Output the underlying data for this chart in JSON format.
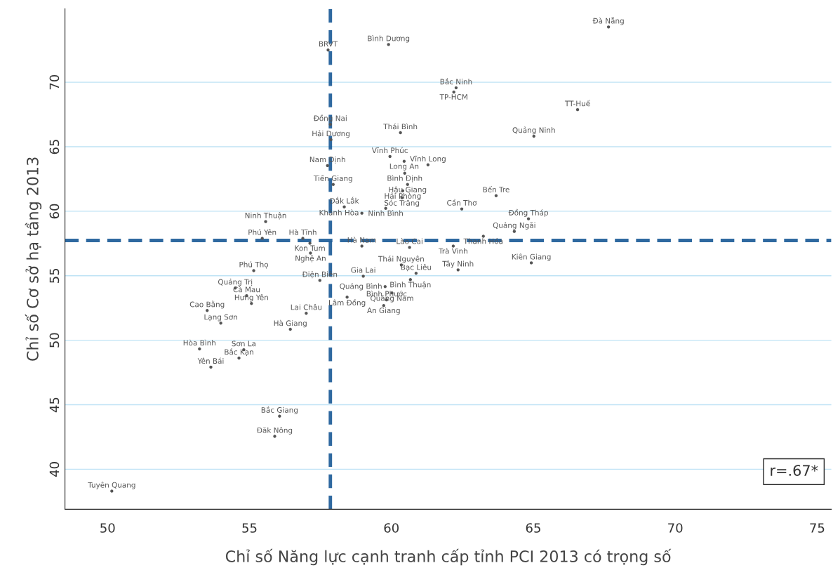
{
  "chart_data": {
    "type": "scatter",
    "xlabel": "Chỉ số Năng lực cạnh tranh cấp tỉnh PCI 2013 có trọng số",
    "ylabel": "Chỉ số Cơ sở hạ tầng 2013",
    "xlim": [
      48.5,
      75.5
    ],
    "ylim": [
      36.9,
      75.7
    ],
    "xticks": [
      50,
      55,
      60,
      65,
      70,
      75
    ],
    "yticks": [
      40,
      45,
      50,
      55,
      60,
      65,
      70
    ],
    "grid": "y",
    "marker": "circle",
    "color": "#555555",
    "x": [
      67.65,
      57.77,
      59.9,
      62.28,
      62.2,
      66.56,
      57.85,
      60.32,
      65.02,
      57.87,
      59.95,
      60.45,
      61.29,
      57.75,
      60.47,
      57.95,
      60.57,
      60.4,
      60.37,
      63.69,
      58.34,
      59.8,
      62.48,
      58.96,
      55.57,
      64.83,
      64.33,
      63.24,
      55.45,
      56.88,
      57.13,
      57.15,
      58.96,
      60.64,
      62.18,
      64.93,
      60.35,
      62.35,
      55.15,
      60.87,
      59.01,
      60.67,
      57.48,
      59.78,
      54.5,
      60.02,
      54.9,
      58.44,
      59.83,
      55.07,
      59.73,
      53.51,
      57.0,
      53.99,
      56.44,
      53.24,
      54.8,
      54.63,
      53.64,
      56.06,
      55.89,
      50.15
    ],
    "values": [
      74.29,
      72.5,
      72.93,
      69.57,
      69.24,
      67.88,
      66.74,
      66.09,
      65.82,
      65.55,
      64.25,
      63.87,
      63.6,
      63.54,
      62.95,
      62.08,
      62.08,
      61.59,
      61.05,
      61.21,
      60.34,
      60.23,
      60.18,
      59.85,
      59.2,
      59.42,
      58.44,
      58.06,
      57.9,
      57.9,
      57.52,
      56.76,
      57.3,
      57.2,
      57.3,
      56.0,
      55.84,
      55.46,
      55.4,
      55.19,
      54.97,
      54.7,
      54.64,
      54.16,
      54.05,
      53.67,
      53.46,
      53.34,
      53.13,
      52.85,
      52.69,
      52.31,
      52.09,
      51.33,
      50.85,
      49.33,
      49.27,
      48.62,
      47.92,
      44.12,
      42.55,
      38.31
    ],
    "value_labels": [
      "Đà Nẵng",
      "BRVT",
      "Bình Dương",
      "Bắc Ninh",
      "TP-HCM",
      "TT-Huế",
      "Đồng Nai",
      "Thái Bình",
      "Quảng Ninh",
      "Hải Dương",
      "Vĩnh Phúc",
      "Long An",
      "Vĩnh Long",
      "Nam Định",
      "Bình Định",
      "Tiền Giang",
      "Hậu Giang",
      "Hải Phòng",
      "Sóc Trăng",
      "Bến Tre",
      "Đắk Lắk",
      "Ninh Bình",
      "Cần Thơ",
      "Khánh Hòa",
      "Ninh Thuận",
      "Đồng Tháp",
      "Quảng Ngãi",
      "Thanh Hóa",
      "Phú Yên",
      "Hà Tĩnh",
      "Kon Tum",
      "Nghệ An",
      "Hà Nam",
      "Lào Cai",
      "Trà Vinh",
      "Kiên Giang",
      "Thái Nguyên",
      "Tây Ninh",
      "Phú Thọ",
      "Bạc Liêu",
      "Gia Lai",
      "Bình Thuận",
      "Điện Biên",
      "Quảng Bình",
      "Quảng Trị",
      "Quảng Nam",
      "Cà Mau",
      "Lâm Đồng",
      "Bình Phước",
      "Hưng Yên",
      "An Giang",
      "Cao Bằng",
      "Lai Châu",
      "Lạng Sơn",
      "Hà Giang",
      "Hòa Bình",
      "Sơn La",
      "Bắc Kạn",
      "Yên Bái",
      "Bắc Giang",
      "Đăk Nông",
      "Tuyên Quang"
    ],
    "ref_lines": [
      {
        "axis": "x",
        "value": 57.85,
        "color": "#0a4f8f",
        "line_style": "dashed"
      },
      {
        "axis": "y",
        "value": 57.74,
        "color": "#0a4f8f",
        "line_style": "dashed"
      }
    ],
    "annotations": [
      "r=.67*"
    ]
  }
}
